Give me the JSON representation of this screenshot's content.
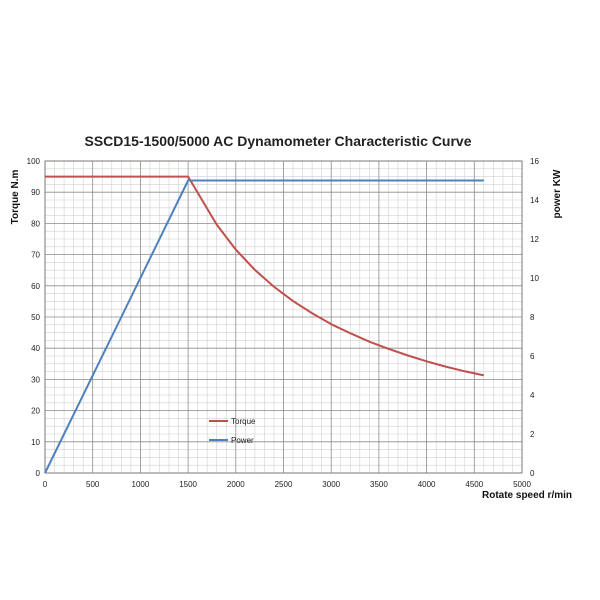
{
  "chart_data": {
    "type": "line",
    "title": "SSCD15-1500/5000 AC Dynamometer Characteristic Curve",
    "xlabel": "Rotate speed r/min",
    "ylabel": "Torque N.m",
    "y2label": "power KW",
    "xlim": [
      0,
      5000
    ],
    "ylim": [
      0,
      100
    ],
    "y2lim": [
      0,
      16
    ],
    "xticks": [
      "0",
      "500",
      "1000",
      "1500",
      "2000",
      "2500",
      "3000",
      "3500",
      "4000",
      "4500",
      "5000"
    ],
    "yticks": [
      "0",
      "10",
      "20",
      "30",
      "40",
      "50",
      "60",
      "70",
      "80",
      "90",
      "100"
    ],
    "y2ticks": [
      "0",
      "2",
      "4",
      "6",
      "8",
      "10",
      "12",
      "14",
      "16"
    ],
    "grid": true,
    "legend_position": "bottom-left",
    "series": [
      {
        "name": "Torque",
        "color": "#c0504d",
        "axis": "left",
        "x": [
          0,
          1500,
          1800,
          2000,
          2200,
          2400,
          2600,
          2800,
          3000,
          3200,
          3400,
          3600,
          3800,
          4000,
          4200,
          4400,
          4600
        ],
        "y": [
          95,
          95,
          79.6,
          71.6,
          65.1,
          59.7,
          55.1,
          51.2,
          47.7,
          44.8,
          42.1,
          39.8,
          37.7,
          35.8,
          34.1,
          32.6,
          31.3
        ]
      },
      {
        "name": "Power",
        "color": "#4f81bd",
        "axis": "right",
        "x": [
          0,
          1500,
          4600
        ],
        "y": [
          0,
          15,
          15
        ]
      }
    ]
  }
}
